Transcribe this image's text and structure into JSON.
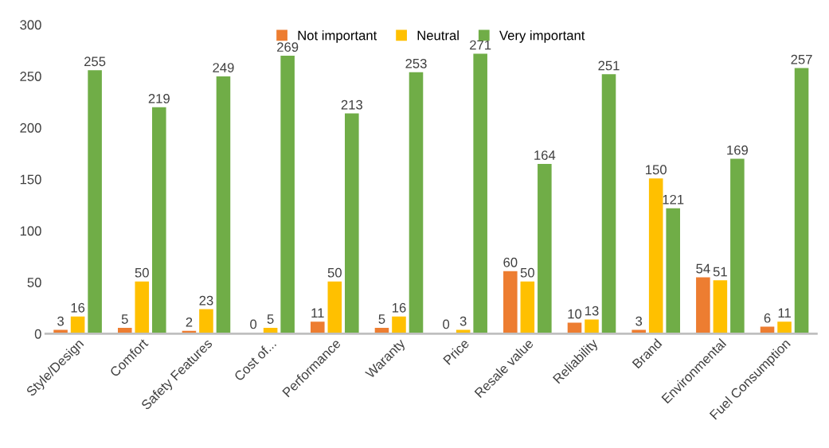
{
  "chart_data": {
    "type": "bar",
    "categories": [
      "Style/Design",
      "Comfort",
      "Safety Features",
      "Cost of...",
      "Performance",
      "Waranty",
      "Price",
      "Resale value",
      "Reliability",
      "Brand",
      "Environmental",
      "Fuel Consumption"
    ],
    "series": [
      {
        "name": "Not important",
        "color": "#ed7d31",
        "values": [
          3,
          5,
          2,
          0,
          11,
          5,
          0,
          60,
          10,
          3,
          54,
          6
        ]
      },
      {
        "name": "Neutral",
        "color": "#ffc000",
        "values": [
          16,
          50,
          23,
          5,
          50,
          16,
          3,
          50,
          13,
          150,
          51,
          11
        ]
      },
      {
        "name": "Very important",
        "color": "#70ad47",
        "values": [
          255,
          219,
          249,
          269,
          213,
          253,
          271,
          164,
          251,
          121,
          169,
          257
        ]
      }
    ],
    "ylim": [
      0,
      300
    ],
    "yticks": [
      0,
      50,
      100,
      150,
      200,
      250,
      300
    ],
    "data_labels": true,
    "legend": "top",
    "grid": false
  }
}
